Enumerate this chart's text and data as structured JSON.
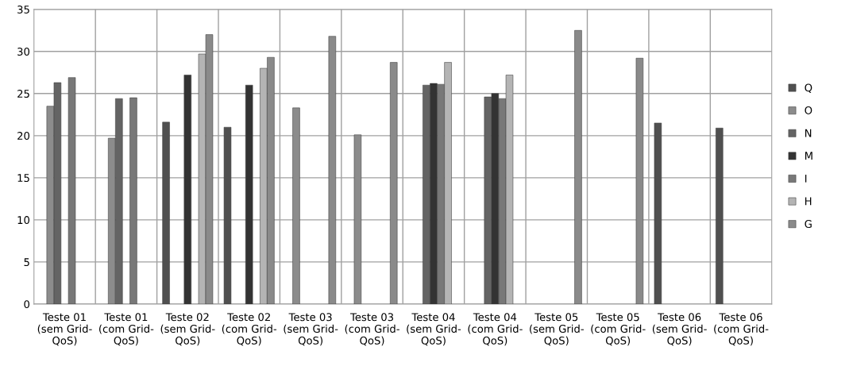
{
  "chart_data": {
    "type": "bar",
    "categories": [
      "Teste 01\n(sem Grid-\nQoS)",
      "Teste 01\n(com Grid-\nQoS)",
      "Teste 02\n(sem Grid-\nQoS)",
      "Teste 02\n(com Grid-\nQoS)",
      "Teste 03\n(sem Grid-\nQoS)",
      "Teste 03\n(com Grid-\nQoS)",
      "Teste 04\n(sem Grid-\nQoS)",
      "Teste 04\n(com Grid-\nQoS)",
      "Teste 05\n(sem Grid-\nQoS)",
      "Teste 05\n(com Grid-\nQoS)",
      "Teste 06\n(sem Grid-\nQoS)",
      "Teste 06\n(com Grid-\nQoS)"
    ],
    "series": [
      {
        "name": "Q",
        "color": "#505050",
        "values": [
          null,
          null,
          21.6,
          21.0,
          null,
          null,
          null,
          null,
          null,
          null,
          21.5,
          20.9
        ]
      },
      {
        "name": "O",
        "color": "#8c8c8c",
        "values": [
          23.5,
          19.7,
          null,
          null,
          23.3,
          20.1,
          null,
          null,
          null,
          null,
          null,
          null
        ]
      },
      {
        "name": "N",
        "color": "#646464",
        "values": [
          26.3,
          24.4,
          null,
          null,
          null,
          null,
          26.0,
          24.6,
          null,
          null,
          null,
          null
        ]
      },
      {
        "name": "M",
        "color": "#333333",
        "values": [
          null,
          null,
          27.2,
          26.0,
          null,
          null,
          26.2,
          25.0,
          null,
          null,
          null,
          null
        ]
      },
      {
        "name": "I",
        "color": "#787878",
        "values": [
          26.9,
          24.5,
          null,
          null,
          null,
          null,
          26.1,
          24.4,
          null,
          null,
          null,
          null
        ]
      },
      {
        "name": "H",
        "color": "#b4b4b4",
        "values": [
          null,
          null,
          29.7,
          28.0,
          null,
          null,
          28.7,
          27.2,
          null,
          null,
          null,
          null
        ]
      },
      {
        "name": "G",
        "color": "#8a8a8a",
        "values": [
          null,
          null,
          32.0,
          29.3,
          31.8,
          28.7,
          null,
          null,
          32.5,
          29.2,
          null,
          null
        ]
      }
    ],
    "ylim": [
      0,
      35
    ],
    "yticks": [
      0,
      5,
      10,
      15,
      20,
      25,
      30,
      35
    ],
    "grid": true,
    "legend": "right"
  }
}
